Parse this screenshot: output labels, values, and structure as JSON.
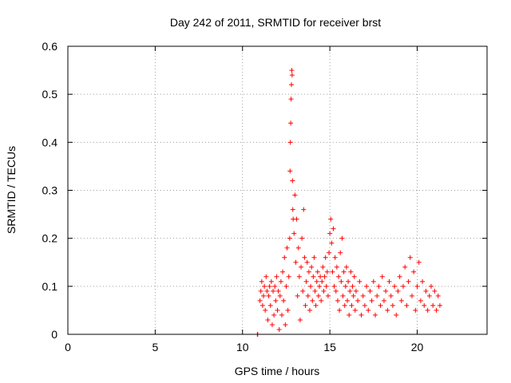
{
  "chart_data": {
    "type": "scatter",
    "title": "Day 242 of 2011, SRMTID for receiver brst",
    "xlabel": "GPS time / hours",
    "ylabel": "SRMTID / TECUs",
    "xlim": [
      0,
      24
    ],
    "ylim": [
      0,
      0.6
    ],
    "x_ticks": [
      0,
      5,
      10,
      15,
      20
    ],
    "y_ticks": [
      0,
      0.1,
      0.2,
      0.3,
      0.4,
      0.5,
      0.6
    ],
    "x_tick_labels": [
      "0",
      "5",
      "10",
      "15",
      "20"
    ],
    "y_tick_labels": [
      "0",
      "0.1",
      "0.2",
      "0.3",
      "0.4",
      "0.5",
      "0.6"
    ],
    "grid": true,
    "marker": "+",
    "series": [
      {
        "name": "SRMTID",
        "color": "#ff0000",
        "points": [
          [
            10.85,
            0.0
          ],
          [
            10.87,
            0.0
          ],
          [
            11.0,
            0.07
          ],
          [
            11.05,
            0.09
          ],
          [
            11.1,
            0.11
          ],
          [
            11.15,
            0.06
          ],
          [
            11.2,
            0.08
          ],
          [
            11.25,
            0.1
          ],
          [
            11.3,
            0.05
          ],
          [
            11.35,
            0.12
          ],
          [
            11.4,
            0.09
          ],
          [
            11.45,
            0.03
          ],
          [
            11.5,
            0.08
          ],
          [
            11.55,
            0.1
          ],
          [
            11.6,
            0.06
          ],
          [
            11.65,
            0.11
          ],
          [
            11.7,
            0.02
          ],
          [
            11.75,
            0.09
          ],
          [
            11.8,
            0.04
          ],
          [
            11.85,
            0.1
          ],
          [
            11.9,
            0.07
          ],
          [
            11.95,
            0.12
          ],
          [
            12.0,
            0.05
          ],
          [
            12.05,
            0.09
          ],
          [
            12.1,
            0.01
          ],
          [
            12.15,
            0.08
          ],
          [
            12.2,
            0.11
          ],
          [
            12.25,
            0.04
          ],
          [
            12.3,
            0.13
          ],
          [
            12.35,
            0.07
          ],
          [
            12.4,
            0.16
          ],
          [
            12.45,
            0.02
          ],
          [
            12.5,
            0.1
          ],
          [
            12.55,
            0.18
          ],
          [
            12.6,
            0.05
          ],
          [
            12.65,
            0.12
          ],
          [
            12.7,
            0.2
          ],
          [
            12.72,
            0.34
          ],
          [
            12.74,
            0.4
          ],
          [
            12.76,
            0.44
          ],
          [
            12.78,
            0.49
          ],
          [
            12.8,
            0.52
          ],
          [
            12.82,
            0.55
          ],
          [
            12.84,
            0.54
          ],
          [
            12.86,
            0.32
          ],
          [
            12.88,
            0.26
          ],
          [
            12.9,
            0.24
          ],
          [
            12.95,
            0.21
          ],
          [
            13.0,
            0.29
          ],
          [
            13.05,
            0.15
          ],
          [
            13.1,
            0.24
          ],
          [
            13.15,
            0.08
          ],
          [
            13.2,
            0.18
          ],
          [
            13.25,
            0.12
          ],
          [
            13.3,
            0.03
          ],
          [
            13.35,
            0.14
          ],
          [
            13.4,
            0.2
          ],
          [
            13.45,
            0.09
          ],
          [
            13.5,
            0.26
          ],
          [
            13.55,
            0.16
          ],
          [
            13.6,
            0.06
          ],
          [
            13.65,
            0.11
          ],
          [
            13.7,
            0.15
          ],
          [
            13.75,
            0.08
          ],
          [
            13.8,
            0.13
          ],
          [
            13.85,
            0.05
          ],
          [
            13.9,
            0.1
          ],
          [
            13.95,
            0.14
          ],
          [
            14.0,
            0.07
          ],
          [
            14.05,
            0.12
          ],
          [
            14.1,
            0.16
          ],
          [
            14.15,
            0.09
          ],
          [
            14.2,
            0.06
          ],
          [
            14.25,
            0.11
          ],
          [
            14.3,
            0.13
          ],
          [
            14.35,
            0.08
          ],
          [
            14.4,
            0.1
          ],
          [
            14.45,
            0.12
          ],
          [
            14.5,
            0.07
          ],
          [
            14.55,
            0.11
          ],
          [
            14.6,
            0.14
          ],
          [
            14.65,
            0.09
          ],
          [
            14.7,
            0.12
          ],
          [
            14.75,
            0.16
          ],
          [
            14.8,
            0.1
          ],
          [
            14.85,
            0.13
          ],
          [
            14.9,
            0.08
          ],
          [
            14.95,
            0.17
          ],
          [
            15.0,
            0.21
          ],
          [
            15.05,
            0.24
          ],
          [
            15.1,
            0.19
          ],
          [
            15.15,
            0.13
          ],
          [
            15.2,
            0.22
          ],
          [
            15.25,
            0.1
          ],
          [
            15.3,
            0.16
          ],
          [
            15.35,
            0.09
          ],
          [
            15.4,
            0.14
          ],
          [
            15.45,
            0.07
          ],
          [
            15.5,
            0.12
          ],
          [
            15.55,
            0.05
          ],
          [
            15.6,
            0.17
          ],
          [
            15.65,
            0.11
          ],
          [
            15.7,
            0.2
          ],
          [
            15.75,
            0.08
          ],
          [
            15.8,
            0.13
          ],
          [
            15.85,
            0.06
          ],
          [
            15.9,
            0.1
          ],
          [
            15.95,
            0.14
          ],
          [
            16.0,
            0.07
          ],
          [
            16.05,
            0.11
          ],
          [
            16.1,
            0.04
          ],
          [
            16.15,
            0.09
          ],
          [
            16.2,
            0.13
          ],
          [
            16.25,
            0.06
          ],
          [
            16.3,
            0.1
          ],
          [
            16.35,
            0.08
          ],
          [
            16.4,
            0.12
          ],
          [
            16.45,
            0.05
          ],
          [
            16.5,
            0.09
          ],
          [
            16.6,
            0.07
          ],
          [
            16.7,
            0.11
          ],
          [
            16.8,
            0.04
          ],
          [
            16.9,
            0.08
          ],
          [
            17.0,
            0.06
          ],
          [
            17.1,
            0.1
          ],
          [
            17.2,
            0.05
          ],
          [
            17.3,
            0.09
          ],
          [
            17.4,
            0.07
          ],
          [
            17.5,
            0.11
          ],
          [
            17.6,
            0.04
          ],
          [
            17.7,
            0.08
          ],
          [
            17.8,
            0.1
          ],
          [
            17.9,
            0.06
          ],
          [
            18.0,
            0.12
          ],
          [
            18.1,
            0.07
          ],
          [
            18.2,
            0.09
          ],
          [
            18.3,
            0.05
          ],
          [
            18.4,
            0.11
          ],
          [
            18.5,
            0.08
          ],
          [
            18.6,
            0.06
          ],
          [
            18.7,
            0.1
          ],
          [
            18.8,
            0.04
          ],
          [
            18.9,
            0.09
          ],
          [
            19.0,
            0.12
          ],
          [
            19.1,
            0.07
          ],
          [
            19.2,
            0.1
          ],
          [
            19.3,
            0.14
          ],
          [
            19.4,
            0.06
          ],
          [
            19.5,
            0.11
          ],
          [
            19.6,
            0.16
          ],
          [
            19.7,
            0.08
          ],
          [
            19.8,
            0.13
          ],
          [
            19.9,
            0.05
          ],
          [
            20.0,
            0.1
          ],
          [
            20.1,
            0.15
          ],
          [
            20.2,
            0.07
          ],
          [
            20.3,
            0.11
          ],
          [
            20.4,
            0.06
          ],
          [
            20.5,
            0.09
          ],
          [
            20.6,
            0.05
          ],
          [
            20.7,
            0.08
          ],
          [
            20.8,
            0.1
          ],
          [
            20.9,
            0.06
          ],
          [
            21.0,
            0.09
          ],
          [
            21.1,
            0.05
          ],
          [
            21.2,
            0.08
          ],
          [
            21.3,
            0.06
          ]
        ]
      }
    ]
  }
}
